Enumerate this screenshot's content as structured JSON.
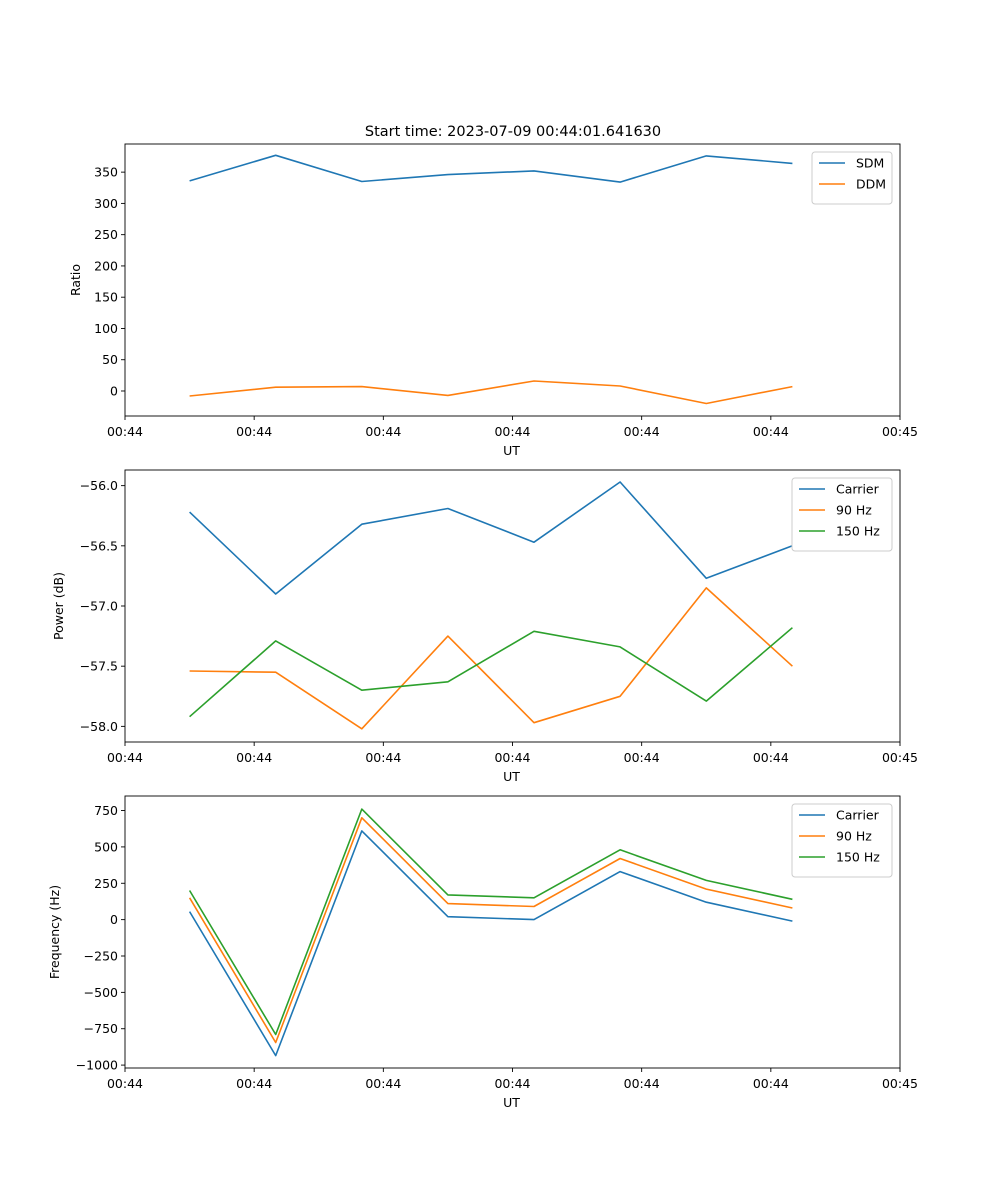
{
  "figure_title": "Start time: 2023-07-09 00:44:01.641630",
  "chart_data": [
    {
      "type": "line",
      "title": "Start time: 2023-07-09 00:44:01.641630",
      "xlabel": "UT",
      "ylabel": "Ratio",
      "x": [
        0,
        1,
        2,
        3,
        4,
        5,
        6,
        7
      ],
      "xlim": [
        -0.75,
        8.25
      ],
      "xticks": [
        -0.75,
        0.75,
        2.25,
        3.75,
        5.25,
        6.75,
        8.25
      ],
      "xtick_labels": [
        "00:44",
        "00:44",
        "00:44",
        "00:44",
        "00:44",
        "00:44",
        "00:45"
      ],
      "ylim": [
        -40,
        395
      ],
      "yticks": [
        0,
        50,
        100,
        150,
        200,
        250,
        300,
        350
      ],
      "ytick_labels": [
        "0",
        "50",
        "100",
        "150",
        "200",
        "250",
        "300",
        "350"
      ],
      "legend_position": "top-right",
      "series": [
        {
          "name": "SDM",
          "color": "#1f77b4",
          "values": [
            336,
            377,
            335,
            346,
            352,
            334,
            376,
            364
          ]
        },
        {
          "name": "DDM",
          "color": "#ff7f0e",
          "values": [
            -8,
            6,
            7,
            -7,
            16,
            8,
            -20,
            7
          ]
        }
      ]
    },
    {
      "type": "line",
      "title": "",
      "xlabel": "UT",
      "ylabel": "Power (dB)",
      "x": [
        0,
        1,
        2,
        3,
        4,
        5,
        6,
        7
      ],
      "xlim": [
        -0.75,
        8.25
      ],
      "xticks": [
        -0.75,
        0.75,
        2.25,
        3.75,
        5.25,
        6.75,
        8.25
      ],
      "xtick_labels": [
        "00:44",
        "00:44",
        "00:44",
        "00:44",
        "00:44",
        "00:44",
        "00:45"
      ],
      "ylim": [
        -58.13,
        -55.87
      ],
      "yticks": [
        -58.0,
        -57.5,
        -57.0,
        -56.5,
        -56.0
      ],
      "ytick_labels": [
        "−58.0",
        "−57.5",
        "−57.0",
        "−56.5",
        "−56.0"
      ],
      "legend_position": "top-right",
      "series": [
        {
          "name": "Carrier",
          "color": "#1f77b4",
          "values": [
            -56.22,
            -56.9,
            -56.32,
            -56.19,
            -56.47,
            -55.97,
            -56.77,
            -56.5
          ]
        },
        {
          "name": "90 Hz",
          "color": "#ff7f0e",
          "values": [
            -57.54,
            -57.55,
            -58.02,
            -57.25,
            -57.97,
            -57.75,
            -56.85,
            -57.5
          ]
        },
        {
          "name": "150 Hz",
          "color": "#2ca02c",
          "values": [
            -57.92,
            -57.29,
            -57.7,
            -57.63,
            -57.21,
            -57.34,
            -57.79,
            -57.18
          ]
        }
      ]
    },
    {
      "type": "line",
      "title": "",
      "xlabel": "UT",
      "ylabel": "Frequency (Hz)",
      "x": [
        0,
        1,
        2,
        3,
        4,
        5,
        6,
        7
      ],
      "xlim": [
        -0.75,
        8.25
      ],
      "xticks": [
        -0.75,
        0.75,
        2.25,
        3.75,
        5.25,
        6.75,
        8.25
      ],
      "xtick_labels": [
        "00:44",
        "00:44",
        "00:44",
        "00:44",
        "00:44",
        "00:44",
        "00:45"
      ],
      "ylim": [
        -1020,
        850
      ],
      "yticks": [
        -1000,
        -750,
        -500,
        -250,
        0,
        250,
        500,
        750
      ],
      "ytick_labels": [
        "−1000",
        "−750",
        "−500",
        "−250",
        "0",
        "250",
        "500",
        "750"
      ],
      "legend_position": "top-right",
      "series": [
        {
          "name": "Carrier",
          "color": "#1f77b4",
          "values": [
            55,
            -935,
            610,
            20,
            0,
            330,
            120,
            -10
          ]
        },
        {
          "name": "90 Hz",
          "color": "#ff7f0e",
          "values": [
            150,
            -845,
            700,
            110,
            90,
            420,
            210,
            80
          ]
        },
        {
          "name": "150 Hz",
          "color": "#2ca02c",
          "values": [
            200,
            -790,
            760,
            170,
            150,
            480,
            270,
            140
          ]
        }
      ]
    }
  ]
}
